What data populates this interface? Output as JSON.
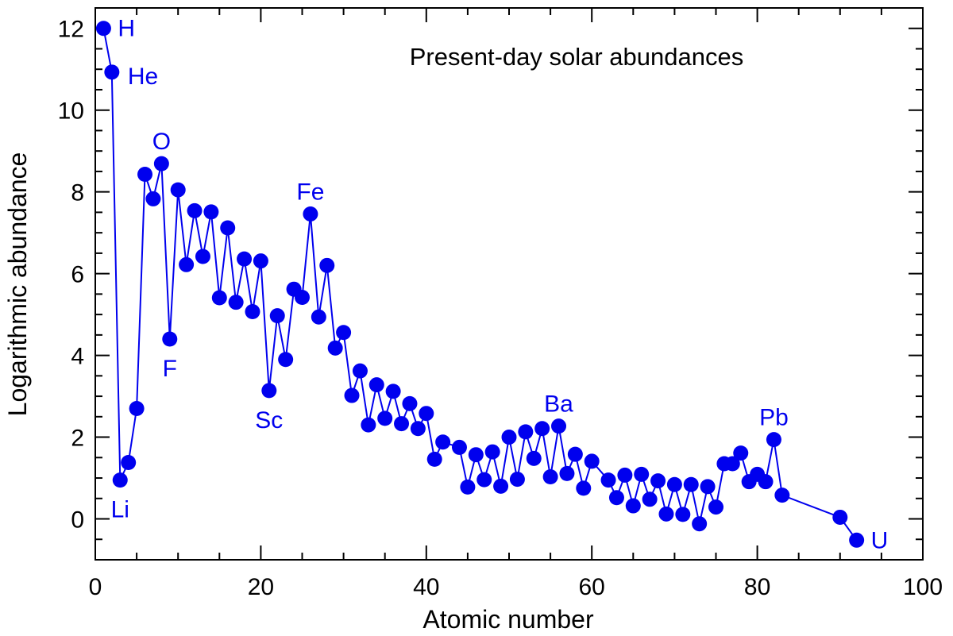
{
  "chart_data": {
    "type": "line",
    "title": "Present-day solar abundances",
    "xlabel": "Atomic number",
    "ylabel": "Logarithmic abundance",
    "xlim": [
      0,
      100
    ],
    "ylim": [
      -1,
      12.5
    ],
    "xticks": [
      0,
      20,
      40,
      60,
      80,
      100
    ],
    "yticks": [
      0,
      2,
      4,
      6,
      8,
      10,
      12
    ],
    "xminor_step": 5,
    "yminor_step": 0.5,
    "color": "#0000ee",
    "series": [
      {
        "name": "Present-day solar abundances",
        "x": [
          1,
          2,
          3,
          4,
          5,
          6,
          7,
          8,
          9,
          10,
          11,
          12,
          13,
          14,
          15,
          16,
          17,
          18,
          19,
          20,
          21,
          22,
          23,
          24,
          25,
          26,
          27,
          28,
          29,
          30,
          31,
          32,
          33,
          34,
          35,
          36,
          37,
          38,
          39,
          40,
          41,
          42,
          44,
          45,
          46,
          47,
          48,
          49,
          50,
          51,
          52,
          53,
          54,
          55,
          56,
          57,
          58,
          59,
          60,
          62,
          63,
          64,
          65,
          66,
          67,
          68,
          69,
          70,
          71,
          72,
          73,
          74,
          75,
          76,
          77,
          78,
          79,
          80,
          81,
          82,
          83,
          90,
          92
        ],
        "y": [
          12.0,
          10.93,
          0.95,
          1.38,
          2.7,
          8.43,
          7.83,
          8.69,
          4.4,
          8.05,
          6.22,
          7.54,
          6.42,
          7.51,
          5.41,
          7.12,
          5.3,
          6.36,
          5.07,
          6.31,
          3.14,
          4.97,
          3.9,
          5.62,
          5.42,
          7.46,
          4.94,
          6.2,
          4.18,
          4.56,
          3.02,
          3.62,
          2.3,
          3.28,
          2.46,
          3.12,
          2.33,
          2.82,
          2.21,
          2.58,
          1.46,
          1.88,
          1.75,
          0.78,
          1.57,
          0.96,
          1.64,
          0.8,
          2.0,
          0.97,
          2.13,
          1.48,
          2.21,
          1.03,
          2.27,
          1.11,
          1.58,
          0.75,
          1.41,
          0.95,
          0.52,
          1.07,
          0.32,
          1.09,
          0.48,
          0.93,
          0.12,
          0.84,
          0.11,
          0.84,
          -0.12,
          0.79,
          0.29,
          1.35,
          1.35,
          1.61,
          0.91,
          1.09,
          0.91,
          1.94,
          0.58,
          0.04,
          -0.52
        ]
      }
    ],
    "annotations": [
      {
        "text": "H",
        "x": 1,
        "y": 12.0,
        "anchor": "right"
      },
      {
        "text": "He",
        "x": 2,
        "y": 10.93,
        "anchor": "below-right"
      },
      {
        "text": "Li",
        "x": 3,
        "y": 0.95,
        "anchor": "below"
      },
      {
        "text": "O",
        "x": 8,
        "y": 8.69,
        "anchor": "above"
      },
      {
        "text": "F",
        "x": 9,
        "y": 4.4,
        "anchor": "below"
      },
      {
        "text": "Sc",
        "x": 21,
        "y": 3.14,
        "anchor": "below"
      },
      {
        "text": "Fe",
        "x": 26,
        "y": 7.46,
        "anchor": "above"
      },
      {
        "text": "Ba",
        "x": 56,
        "y": 2.27,
        "anchor": "above"
      },
      {
        "text": "Pb",
        "x": 82,
        "y": 1.94,
        "anchor": "above"
      },
      {
        "text": "U",
        "x": 92,
        "y": -0.52,
        "anchor": "right"
      }
    ]
  }
}
